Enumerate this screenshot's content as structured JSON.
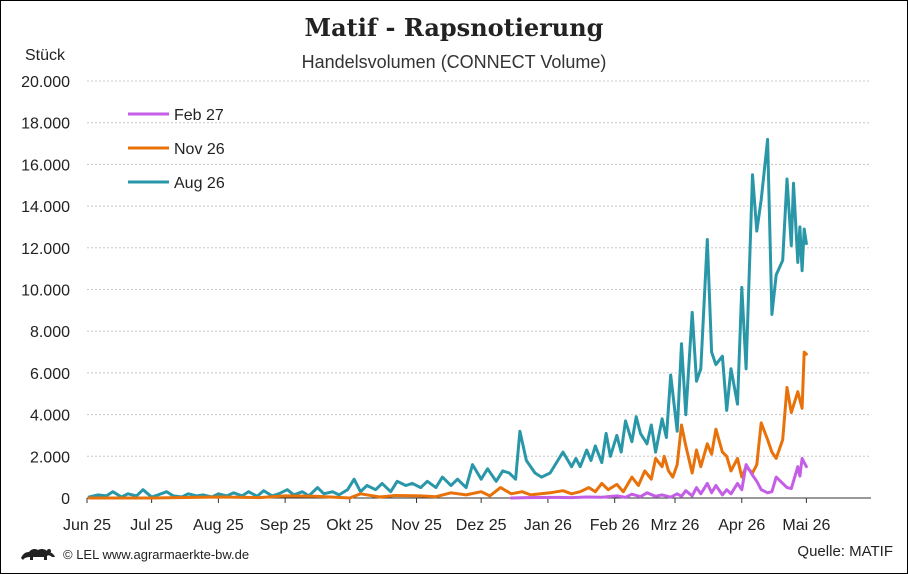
{
  "header": {
    "title": "Matif - Rapsnotierung",
    "subtitle": "Handelsvolumen (CONNECT Volume)"
  },
  "footer": {
    "credit": "© LEL www.agrarmaerkte-bw.de",
    "source": "Quelle: MATIF",
    "logo_icon": "lion-icon"
  },
  "chart_data": {
    "type": "line",
    "title": "Matif - Rapsnotierung",
    "subtitle": "Handelsvolumen (CONNECT Volume)",
    "ylabel": "Stück",
    "xlabel": "",
    "ylim": [
      0,
      20000
    ],
    "yticks": [
      0,
      2000,
      4000,
      6000,
      8000,
      10000,
      12000,
      14000,
      16000,
      18000,
      20000
    ],
    "ytick_labels": [
      "0",
      "2.000",
      "4.000",
      "6.000",
      "8.000",
      "10.000",
      "12.000",
      "14.000",
      "16.000",
      "18.000",
      "20.000"
    ],
    "xlim": [
      "2025-06-01",
      "2026-05-31"
    ],
    "xticks": [
      "2025-06-01",
      "2025-07-01",
      "2025-08-01",
      "2025-09-01",
      "2025-10-01",
      "2025-11-01",
      "2025-12-01",
      "2026-01-01",
      "2026-02-01",
      "2026-03-01",
      "2026-04-01",
      "2026-05-01"
    ],
    "xtick_labels": [
      "Jun 25",
      "Jul 25",
      "Aug 25",
      "Sep 25",
      "Okt 25",
      "Nov 25",
      "Dez 25",
      "Jan 26",
      "Feb 26",
      "Mrz 26",
      "Apr 26",
      "Mai 26"
    ],
    "grid": "horizontal dotted",
    "legend_position": "top-left",
    "series": [
      {
        "name": "Feb 27",
        "color": "#c45ee6",
        "points": [
          [
            "2025-12-15",
            0
          ],
          [
            "2025-12-22",
            20
          ],
          [
            "2026-01-05",
            30
          ],
          [
            "2026-01-12",
            20
          ],
          [
            "2026-01-19",
            50
          ],
          [
            "2026-01-26",
            40
          ],
          [
            "2026-02-02",
            100
          ],
          [
            "2026-02-06",
            30
          ],
          [
            "2026-02-09",
            180
          ],
          [
            "2026-02-13",
            60
          ],
          [
            "2026-02-16",
            250
          ],
          [
            "2026-02-20",
            80
          ],
          [
            "2026-02-23",
            150
          ],
          [
            "2026-02-27",
            40
          ],
          [
            "2026-03-02",
            200
          ],
          [
            "2026-03-04",
            80
          ],
          [
            "2026-03-06",
            350
          ],
          [
            "2026-03-09",
            100
          ],
          [
            "2026-03-11",
            500
          ],
          [
            "2026-03-13",
            200
          ],
          [
            "2026-03-16",
            700
          ],
          [
            "2026-03-18",
            250
          ],
          [
            "2026-03-20",
            600
          ],
          [
            "2026-03-23",
            150
          ],
          [
            "2026-03-25",
            400
          ],
          [
            "2026-03-27",
            200
          ],
          [
            "2026-03-30",
            700
          ],
          [
            "2026-04-01",
            400
          ],
          [
            "2026-04-03",
            1600
          ],
          [
            "2026-04-06",
            1100
          ],
          [
            "2026-04-08",
            800
          ],
          [
            "2026-04-10",
            400
          ],
          [
            "2026-04-13",
            250
          ],
          [
            "2026-04-15",
            300
          ],
          [
            "2026-04-17",
            1000
          ],
          [
            "2026-04-20",
            700
          ],
          [
            "2026-04-22",
            500
          ],
          [
            "2026-04-24",
            450
          ],
          [
            "2026-04-27",
            1500
          ],
          [
            "2026-04-28",
            1050
          ],
          [
            "2026-04-29",
            1900
          ],
          [
            "2026-04-30",
            1700
          ],
          [
            "2026-05-01",
            1500
          ]
        ]
      },
      {
        "name": "Nov 26",
        "color": "#e8710a",
        "points": [
          [
            "2025-06-02",
            0
          ],
          [
            "2025-07-01",
            0
          ],
          [
            "2025-08-01",
            50
          ],
          [
            "2025-08-20",
            20
          ],
          [
            "2025-09-01",
            100
          ],
          [
            "2025-09-15",
            80
          ],
          [
            "2025-10-01",
            0
          ],
          [
            "2025-10-06",
            200
          ],
          [
            "2025-10-15",
            50
          ],
          [
            "2025-10-22",
            120
          ],
          [
            "2025-11-03",
            100
          ],
          [
            "2025-11-10",
            60
          ],
          [
            "2025-11-17",
            250
          ],
          [
            "2025-11-24",
            150
          ],
          [
            "2025-12-01",
            300
          ],
          [
            "2025-12-05",
            100
          ],
          [
            "2025-12-10",
            500
          ],
          [
            "2025-12-15",
            200
          ],
          [
            "2025-12-20",
            300
          ],
          [
            "2025-12-24",
            150
          ],
          [
            "2026-01-02",
            250
          ],
          [
            "2026-01-08",
            350
          ],
          [
            "2026-01-12",
            200
          ],
          [
            "2026-01-16",
            300
          ],
          [
            "2026-01-20",
            500
          ],
          [
            "2026-01-23",
            300
          ],
          [
            "2026-01-26",
            700
          ],
          [
            "2026-01-29",
            400
          ],
          [
            "2026-02-02",
            650
          ],
          [
            "2026-02-05",
            300
          ],
          [
            "2026-02-09",
            1000
          ],
          [
            "2026-02-12",
            600
          ],
          [
            "2026-02-15",
            1300
          ],
          [
            "2026-02-18",
            900
          ],
          [
            "2026-02-20",
            1900
          ],
          [
            "2026-02-23",
            1500
          ],
          [
            "2026-02-24",
            2000
          ],
          [
            "2026-02-26",
            1300
          ],
          [
            "2026-02-28",
            1000
          ],
          [
            "2026-03-02",
            1600
          ],
          [
            "2026-03-04",
            3500
          ],
          [
            "2026-03-06",
            2500
          ],
          [
            "2026-03-09",
            1200
          ],
          [
            "2026-03-11",
            2300
          ],
          [
            "2026-03-13",
            1500
          ],
          [
            "2026-03-16",
            2600
          ],
          [
            "2026-03-18",
            2100
          ],
          [
            "2026-03-20",
            3300
          ],
          [
            "2026-03-23",
            2200
          ],
          [
            "2026-03-25",
            2000
          ],
          [
            "2026-03-27",
            1300
          ],
          [
            "2026-03-30",
            1900
          ],
          [
            "2026-04-01",
            1000
          ],
          [
            "2026-04-03",
            1500
          ],
          [
            "2026-04-06",
            1200
          ],
          [
            "2026-04-08",
            1600
          ],
          [
            "2026-04-10",
            3600
          ],
          [
            "2026-04-13",
            2800
          ],
          [
            "2026-04-15",
            2200
          ],
          [
            "2026-04-17",
            1900
          ],
          [
            "2026-04-20",
            2800
          ],
          [
            "2026-04-22",
            5300
          ],
          [
            "2026-04-24",
            4100
          ],
          [
            "2026-04-27",
            5100
          ],
          [
            "2026-04-29",
            4300
          ],
          [
            "2026-04-30",
            7000
          ],
          [
            "2026-05-01",
            6900
          ]
        ]
      },
      {
        "name": "Aug 26",
        "color": "#2997a8",
        "points": [
          [
            "2025-06-02",
            50
          ],
          [
            "2025-06-06",
            150
          ],
          [
            "2025-06-10",
            100
          ],
          [
            "2025-06-13",
            300
          ],
          [
            "2025-06-17",
            50
          ],
          [
            "2025-06-20",
            200
          ],
          [
            "2025-06-24",
            100
          ],
          [
            "2025-06-27",
            400
          ],
          [
            "2025-07-01",
            50
          ],
          [
            "2025-07-04",
            150
          ],
          [
            "2025-07-08",
            300
          ],
          [
            "2025-07-11",
            100
          ],
          [
            "2025-07-15",
            50
          ],
          [
            "2025-07-18",
            200
          ],
          [
            "2025-07-22",
            100
          ],
          [
            "2025-07-25",
            150
          ],
          [
            "2025-07-29",
            50
          ],
          [
            "2025-08-01",
            200
          ],
          [
            "2025-08-05",
            100
          ],
          [
            "2025-08-08",
            250
          ],
          [
            "2025-08-12",
            100
          ],
          [
            "2025-08-15",
            300
          ],
          [
            "2025-08-19",
            80
          ],
          [
            "2025-08-22",
            350
          ],
          [
            "2025-08-26",
            100
          ],
          [
            "2025-08-29",
            200
          ],
          [
            "2025-09-02",
            400
          ],
          [
            "2025-09-05",
            150
          ],
          [
            "2025-09-09",
            300
          ],
          [
            "2025-09-12",
            100
          ],
          [
            "2025-09-16",
            500
          ],
          [
            "2025-09-19",
            200
          ],
          [
            "2025-09-23",
            300
          ],
          [
            "2025-09-26",
            150
          ],
          [
            "2025-09-30",
            400
          ],
          [
            "2025-10-03",
            900
          ],
          [
            "2025-10-06",
            300
          ],
          [
            "2025-10-09",
            600
          ],
          [
            "2025-10-13",
            400
          ],
          [
            "2025-10-16",
            700
          ],
          [
            "2025-10-20",
            300
          ],
          [
            "2025-10-23",
            800
          ],
          [
            "2025-10-27",
            600
          ],
          [
            "2025-10-30",
            700
          ],
          [
            "2025-11-03",
            500
          ],
          [
            "2025-11-06",
            800
          ],
          [
            "2025-11-10",
            500
          ],
          [
            "2025-11-13",
            1000
          ],
          [
            "2025-11-17",
            600
          ],
          [
            "2025-11-20",
            900
          ],
          [
            "2025-11-24",
            500
          ],
          [
            "2025-11-27",
            1600
          ],
          [
            "2025-12-01",
            900
          ],
          [
            "2025-12-04",
            1400
          ],
          [
            "2025-12-08",
            800
          ],
          [
            "2025-12-11",
            1300
          ],
          [
            "2025-12-14",
            1200
          ],
          [
            "2025-12-17",
            900
          ],
          [
            "2025-12-19",
            3200
          ],
          [
            "2025-12-22",
            1800
          ],
          [
            "2025-12-26",
            1200
          ],
          [
            "2025-12-29",
            1000
          ],
          [
            "2026-01-02",
            1200
          ],
          [
            "2026-01-05",
            1700
          ],
          [
            "2026-01-08",
            2200
          ],
          [
            "2026-01-12",
            1500
          ],
          [
            "2026-01-14",
            1900
          ],
          [
            "2026-01-16",
            1500
          ],
          [
            "2026-01-19",
            2300
          ],
          [
            "2026-01-21",
            1800
          ],
          [
            "2026-01-23",
            2500
          ],
          [
            "2026-01-26",
            1700
          ],
          [
            "2026-01-28",
            3100
          ],
          [
            "2026-01-30",
            2000
          ],
          [
            "2026-02-02",
            3000
          ],
          [
            "2026-02-04",
            2200
          ],
          [
            "2026-02-06",
            3700
          ],
          [
            "2026-02-09",
            2700
          ],
          [
            "2026-02-11",
            3900
          ],
          [
            "2026-02-13",
            3100
          ],
          [
            "2026-02-16",
            2600
          ],
          [
            "2026-02-18",
            3500
          ],
          [
            "2026-02-20",
            2200
          ],
          [
            "2026-02-23",
            3800
          ],
          [
            "2026-02-25",
            2900
          ],
          [
            "2026-02-27",
            5900
          ],
          [
            "2026-03-02",
            3200
          ],
          [
            "2026-03-04",
            7400
          ],
          [
            "2026-03-06",
            4000
          ],
          [
            "2026-03-09",
            8900
          ],
          [
            "2026-03-11",
            5600
          ],
          [
            "2026-03-13",
            6200
          ],
          [
            "2026-03-16",
            12400
          ],
          [
            "2026-03-18",
            7000
          ],
          [
            "2026-03-20",
            6400
          ],
          [
            "2026-03-23",
            6800
          ],
          [
            "2026-03-25",
            4200
          ],
          [
            "2026-03-27",
            6200
          ],
          [
            "2026-03-30",
            4500
          ],
          [
            "2026-04-01",
            10100
          ],
          [
            "2026-04-03",
            6200
          ],
          [
            "2026-04-06",
            15500
          ],
          [
            "2026-04-08",
            12800
          ],
          [
            "2026-04-10",
            14300
          ],
          [
            "2026-04-13",
            17200
          ],
          [
            "2026-04-15",
            8800
          ],
          [
            "2026-04-17",
            10700
          ],
          [
            "2026-04-20",
            11400
          ],
          [
            "2026-04-22",
            15300
          ],
          [
            "2026-04-24",
            12100
          ],
          [
            "2026-04-25",
            15100
          ],
          [
            "2026-04-27",
            11300
          ],
          [
            "2026-04-28",
            13000
          ],
          [
            "2026-04-29",
            10900
          ],
          [
            "2026-04-30",
            12900
          ],
          [
            "2026-05-01",
            12200
          ]
        ]
      }
    ]
  }
}
